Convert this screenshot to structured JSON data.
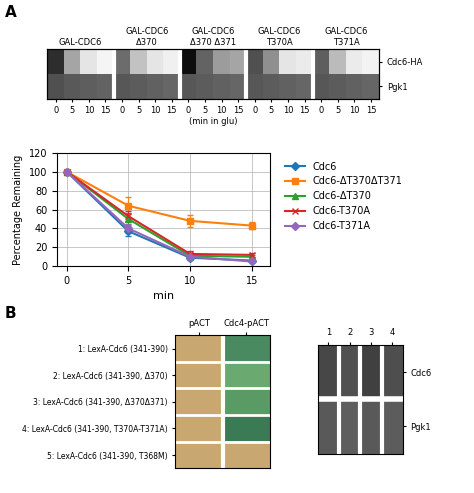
{
  "chart_data": [
    {
      "type": "heatmap",
      "title": "A",
      "categories": [
        "GAL-CDC6",
        "GAL-CDC6\nΔ370",
        "GAL-CDC6\nΔ370 Δ371",
        "GAL-CDC6\nT370A",
        "GAL-CDC6\nT371A"
      ],
      "x": [
        "0",
        "5",
        "10",
        "15"
      ],
      "xlabel": "(min in glu)",
      "zlim": [
        0,
        1
      ],
      "series": [
        {
          "name": "Cdc6-HA",
          "values": [
            [
              0.85,
              0.45,
              0.18,
              0.08
            ],
            [
              0.65,
              0.35,
              0.18,
              0.12
            ],
            [
              0.95,
              0.68,
              0.48,
              0.45
            ],
            [
              0.75,
              0.52,
              0.18,
              0.15
            ],
            [
              0.7,
              0.38,
              0.15,
              0.1
            ]
          ]
        },
        {
          "name": "Pgk1",
          "values": [
            [
              0.75,
              0.72,
              0.7,
              0.68
            ],
            [
              0.73,
              0.71,
              0.69,
              0.67
            ],
            [
              0.73,
              0.71,
              0.69,
              0.67
            ],
            [
              0.73,
              0.71,
              0.69,
              0.67
            ],
            [
              0.73,
              0.71,
              0.69,
              0.67
            ]
          ]
        }
      ]
    },
    {
      "type": "line",
      "x": [
        0,
        5,
        10,
        15
      ],
      "xlabel": "min",
      "ylabel": "Percentage Remaining",
      "xlim": [
        -0.8,
        16.5
      ],
      "ylim": [
        0,
        120
      ],
      "xticks": [
        0,
        5,
        10,
        15
      ],
      "yticks": [
        0,
        20,
        40,
        60,
        80,
        100,
        120
      ],
      "grid": true,
      "legend": "upper left",
      "series": [
        {
          "name": "Cdc6",
          "values": [
            100,
            37,
            9,
            6
          ],
          "yerr": [
            0,
            5,
            2,
            2
          ],
          "marker": "diamond",
          "line_style": "solid"
        },
        {
          "name": "Cdc6-ΔT370ΔT371",
          "values": [
            100,
            64,
            48,
            43
          ],
          "yerr": [
            0,
            9,
            6,
            4
          ],
          "marker": "square",
          "line_style": "solid"
        },
        {
          "name": "Cdc6-ΔT370",
          "values": [
            100,
            50,
            11,
            10
          ],
          "yerr": [
            0,
            6,
            2,
            2
          ],
          "marker": "triangle",
          "line_style": "solid"
        },
        {
          "name": "Cdc6-T370A",
          "values": [
            100,
            53,
            13,
            12
          ],
          "yerr": [
            0,
            5,
            3,
            2
          ],
          "marker": "x",
          "line_style": "solid"
        },
        {
          "name": "Cdc6-T371A",
          "values": [
            100,
            40,
            10,
            5
          ],
          "yerr": [
            0,
            5,
            2,
            1
          ],
          "marker": "diamond",
          "line_style": "solid"
        }
      ]
    },
    {
      "type": "swatch",
      "title": "B",
      "categories": [
        "1: LexA-Cdc6 (341-390)",
        "2: LexA-Cdc6 (341-390, Δ370)",
        "3: LexA-Cdc6 (341-390, Δ370Δ371)",
        "4: LexA-Cdc6 (341-390, T370A-T371A)",
        "5: LexA-Cdc6 (341-390, T368M)"
      ],
      "series": [
        {
          "name": "pACT",
          "colors": [
            "#c8a870",
            "#c8a870",
            "#c8a870",
            "#c8a870",
            "#c8a870"
          ]
        },
        {
          "name": "Cdc4-pACT",
          "colors": [
            "#4a8a60",
            "#6aaa70",
            "#5a9a65",
            "#3a7a55",
            "#c8a870"
          ]
        }
      ]
    },
    {
      "type": "heatmap",
      "categories": [
        "1",
        "2",
        "3",
        "4"
      ],
      "zlim": [
        0,
        1
      ],
      "series": [
        {
          "name": "Cdc6",
          "values": [
            0.78,
            0.75,
            0.8,
            0.76
          ]
        },
        {
          "name": "Pgk1",
          "values": [
            0.72,
            0.7,
            0.72,
            0.71
          ]
        }
      ]
    }
  ]
}
